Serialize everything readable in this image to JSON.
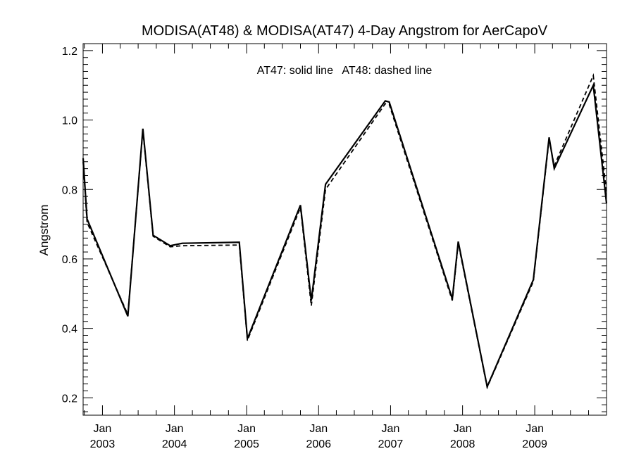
{
  "chart_data": {
    "type": "line",
    "title": "MODISA(AT48) & MODISA(AT47) 4-Day Angstrom for AerCapoV",
    "ylabel": "Angstrom",
    "xlabel": "",
    "annotation": "AT47: solid line   AT48: dashed line",
    "ylim": [
      0.15,
      1.22
    ],
    "xlim": [
      "2002-09-25",
      "2009-12-31"
    ],
    "yticks": [
      "0.2",
      "0.4",
      "0.6",
      "0.8",
      "1.0",
      "1.2"
    ],
    "xticks": [
      {
        "month": "Jan",
        "year": "2003",
        "date": "2003-01-01"
      },
      {
        "month": "Jan",
        "year": "2004",
        "date": "2004-01-01"
      },
      {
        "month": "Jan",
        "year": "2005",
        "date": "2005-01-01"
      },
      {
        "month": "Jan",
        "year": "2006",
        "date": "2006-01-01"
      },
      {
        "month": "Jan",
        "year": "2007",
        "date": "2007-01-01"
      },
      {
        "month": "Jan",
        "year": "2008",
        "date": "2008-01-01"
      },
      {
        "month": "Jan",
        "year": "2009",
        "date": "2009-01-01"
      }
    ],
    "series": [
      {
        "name": "AT47",
        "style": "solid",
        "points": [
          [
            "2002-09-25",
            0.89
          ],
          [
            "2002-10-15",
            0.715
          ],
          [
            "2003-05-10",
            0.435
          ],
          [
            "2003-07-25",
            0.975
          ],
          [
            "2003-09-15",
            0.668
          ],
          [
            "2003-12-10",
            0.638
          ],
          [
            "2004-02-10",
            0.645
          ],
          [
            "2004-11-25",
            0.648
          ],
          [
            "2005-01-05",
            0.37
          ],
          [
            "2005-10-01",
            0.755
          ],
          [
            "2005-11-25",
            0.48
          ],
          [
            "2006-02-05",
            0.815
          ],
          [
            "2006-12-05",
            1.055
          ],
          [
            "2006-12-25",
            1.052
          ],
          [
            "2007-11-10",
            0.485
          ],
          [
            "2007-12-10",
            0.65
          ],
          [
            "2008-05-05",
            0.232
          ],
          [
            "2008-12-25",
            0.54
          ],
          [
            "2009-03-15",
            0.95
          ],
          [
            "2009-04-10",
            0.86
          ],
          [
            "2009-10-25",
            1.1
          ],
          [
            "2009-12-31",
            0.76
          ]
        ]
      },
      {
        "name": "AT48",
        "style": "dashed",
        "points": [
          [
            "2002-09-25",
            0.88
          ],
          [
            "2002-10-15",
            0.705
          ],
          [
            "2003-05-10",
            0.44
          ],
          [
            "2003-07-25",
            0.97
          ],
          [
            "2003-09-15",
            0.665
          ],
          [
            "2003-12-10",
            0.635
          ],
          [
            "2004-02-10",
            0.638
          ],
          [
            "2004-11-25",
            0.64
          ],
          [
            "2005-01-05",
            0.365
          ],
          [
            "2005-10-01",
            0.748
          ],
          [
            "2005-11-25",
            0.465
          ],
          [
            "2006-02-05",
            0.8
          ],
          [
            "2006-12-05",
            1.047
          ],
          [
            "2006-12-25",
            1.045
          ],
          [
            "2007-11-10",
            0.48
          ],
          [
            "2007-12-10",
            0.645
          ],
          [
            "2008-05-05",
            0.23
          ],
          [
            "2008-12-25",
            0.535
          ],
          [
            "2009-03-15",
            0.945
          ],
          [
            "2009-04-10",
            0.868
          ],
          [
            "2009-10-25",
            1.128
          ],
          [
            "2009-12-31",
            0.79
          ]
        ]
      }
    ],
    "grid": false,
    "line_color": "#000000",
    "background": "#ffffff"
  }
}
